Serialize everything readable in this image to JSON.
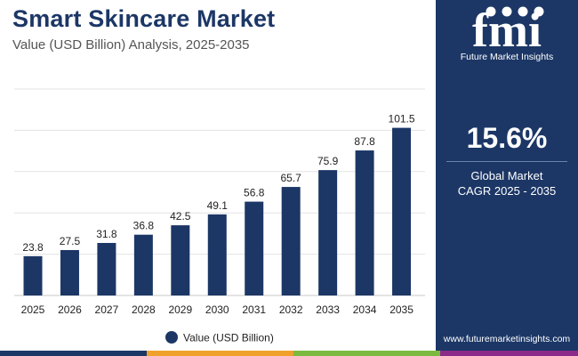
{
  "header": {
    "title": "Smart Skincare Market",
    "subtitle": "Value (USD Billion) Analysis, 2025-2035"
  },
  "sidebar": {
    "logo_text": "fmi",
    "logo_tagline": "Future Market Insights",
    "cagr_value": "15.6%",
    "cagr_label_line1": "Global Market",
    "cagr_label_line2": "CAGR 2025 - 2035",
    "website": "www.futuremarketinsights.com"
  },
  "colors": {
    "bar": "#1c3766",
    "panel": "#1c3766",
    "stripe": [
      "#1c3766",
      "#f0a12c",
      "#7cba3f",
      "#8c2a8a",
      "#1c3766"
    ]
  },
  "chart_data": {
    "type": "bar",
    "title": "Smart Skincare Market",
    "subtitle": "Value (USD Billion) Analysis, 2025-2035",
    "categories": [
      "2025",
      "2026",
      "2027",
      "2028",
      "2029",
      "2030",
      "2031",
      "2032",
      "2033",
      "2034",
      "2035"
    ],
    "series": [
      {
        "name": "Value (USD Billion)",
        "values": [
          23.8,
          27.5,
          31.8,
          36.8,
          42.5,
          49.1,
          56.8,
          65.7,
          75.9,
          87.8,
          101.5
        ]
      }
    ],
    "xlabel": "",
    "ylabel": "",
    "ylim": [
      0,
      125
    ],
    "grid": true,
    "legend_position": "bottom-center"
  }
}
